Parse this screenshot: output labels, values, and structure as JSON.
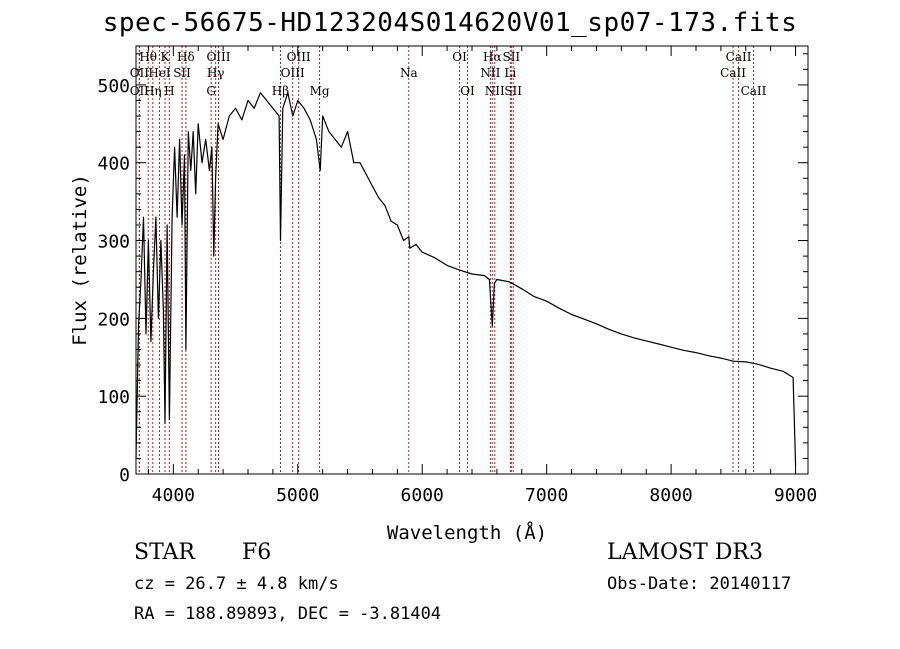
{
  "chart_data": {
    "type": "line",
    "title": "spec-56675-HD123204S014620V01_sp07-173.fits",
    "xlabel": "Wavelength (Å)",
    "ylabel": "Flux (relative)",
    "xlim": [
      3700,
      9100
    ],
    "ylim": [
      0,
      550
    ],
    "x_ticks": [
      4000,
      5000,
      6000,
      7000,
      8000,
      9000
    ],
    "y_ticks": [
      0,
      100,
      200,
      300,
      400,
      500
    ],
    "grid": false,
    "series": [
      {
        "color": "#000000",
        "x": [
          3700,
          3720,
          3740,
          3760,
          3780,
          3800,
          3820,
          3840,
          3860,
          3880,
          3900,
          3920,
          3933,
          3950,
          3968,
          3990,
          4010,
          4030,
          4050,
          4070,
          4090,
          4101,
          4120,
          4140,
          4160,
          4180,
          4200,
          4230,
          4260,
          4290,
          4310,
          4325,
          4340,
          4360,
          4400,
          4450,
          4500,
          4550,
          4600,
          4650,
          4700,
          4750,
          4800,
          4850,
          4861,
          4880,
          4920,
          4960,
          5000,
          5050,
          5100,
          5150,
          5180,
          5200,
          5250,
          5300,
          5350,
          5400,
          5450,
          5500,
          5550,
          5600,
          5650,
          5700,
          5750,
          5800,
          5850,
          5892,
          5900,
          5950,
          6000,
          6100,
          6200,
          6300,
          6400,
          6500,
          6540,
          6563,
          6580,
          6600,
          6700,
          6800,
          6900,
          7000,
          7100,
          7200,
          7300,
          7400,
          7500,
          7600,
          7700,
          7800,
          7900,
          8000,
          8100,
          8200,
          8300,
          8400,
          8500,
          8600,
          8700,
          8800,
          8900,
          8980,
          9000
        ],
        "y": [
          20,
          190,
          250,
          330,
          180,
          300,
          170,
          260,
          330,
          200,
          300,
          210,
          65,
          320,
          70,
          330,
          420,
          330,
          430,
          320,
          410,
          160,
          440,
          390,
          440,
          360,
          450,
          400,
          430,
          390,
          420,
          280,
          380,
          450,
          430,
          460,
          470,
          455,
          480,
          470,
          490,
          480,
          470,
          460,
          300,
          470,
          490,
          460,
          480,
          470,
          455,
          430,
          390,
          460,
          440,
          430,
          420,
          440,
          400,
          400,
          385,
          370,
          355,
          345,
          325,
          320,
          300,
          305,
          290,
          295,
          285,
          278,
          268,
          262,
          257,
          255,
          250,
          190,
          245,
          250,
          247,
          238,
          228,
          222,
          213,
          205,
          199,
          193,
          186,
          180,
          175,
          171,
          167,
          163,
          159,
          156,
          152,
          149,
          145,
          144,
          141,
          136,
          132,
          124,
          10
        ]
      }
    ],
    "annotations": {
      "lines": [
        {
          "label": "Hθ",
          "x": 3798,
          "row": 1
        },
        {
          "label": "OII",
          "x": 3727,
          "row": 2
        },
        {
          "label": "Hη",
          "x": 3835,
          "row": 3
        },
        {
          "label": "OII",
          "x": 3727,
          "row": 3
        },
        {
          "label": "K",
          "x": 3933,
          "row": 1
        },
        {
          "label": "HeI",
          "x": 3889,
          "row": 2
        },
        {
          "label": "H",
          "x": 3968,
          "row": 3
        },
        {
          "label": "SII",
          "x": 4070,
          "row": 2
        },
        {
          "label": "Hδ",
          "x": 4101,
          "row": 1
        },
        {
          "label": "OIII",
          "x": 4363,
          "row": 1
        },
        {
          "label": "Hγ",
          "x": 4340,
          "row": 2
        },
        {
          "label": "G",
          "x": 4304,
          "row": 3
        },
        {
          "label": "OIII",
          "x": 5007,
          "row": 1
        },
        {
          "label": "OIII",
          "x": 4959,
          "row": 2
        },
        {
          "label": "Hβ",
          "x": 4861,
          "row": 3
        },
        {
          "label": "Mg",
          "x": 5175,
          "row": 3
        },
        {
          "label": "Na",
          "x": 5892,
          "row": 2
        },
        {
          "label": "OI",
          "x": 6300,
          "row": 1
        },
        {
          "label": "OI",
          "x": 6364,
          "row": 3
        },
        {
          "label": "Hα",
          "x": 6563,
          "row": 1
        },
        {
          "label": "NII",
          "x": 6548,
          "row": 2
        },
        {
          "label": "NII",
          "x": 6583,
          "row": 3
        },
        {
          "label": "SII",
          "x": 6716,
          "row": 1
        },
        {
          "label": "Li",
          "x": 6708,
          "row": 2
        },
        {
          "label": "SII",
          "x": 6731,
          "row": 3
        },
        {
          "label": "CaII",
          "x": 8542,
          "row": 1
        },
        {
          "label": "CaII",
          "x": 8498,
          "row": 2
        },
        {
          "label": "CaII",
          "x": 8662,
          "row": 3
        }
      ],
      "line_color": "#b02020"
    }
  },
  "info": {
    "class": "STAR",
    "subclass": "F6",
    "survey": "LAMOST DR3",
    "cz": "cz = 26.7 ± 4.8 km/s",
    "obs_date": "Obs-Date: 20140117",
    "coords": "RA = 188.89893, DEC =  -3.81404"
  }
}
